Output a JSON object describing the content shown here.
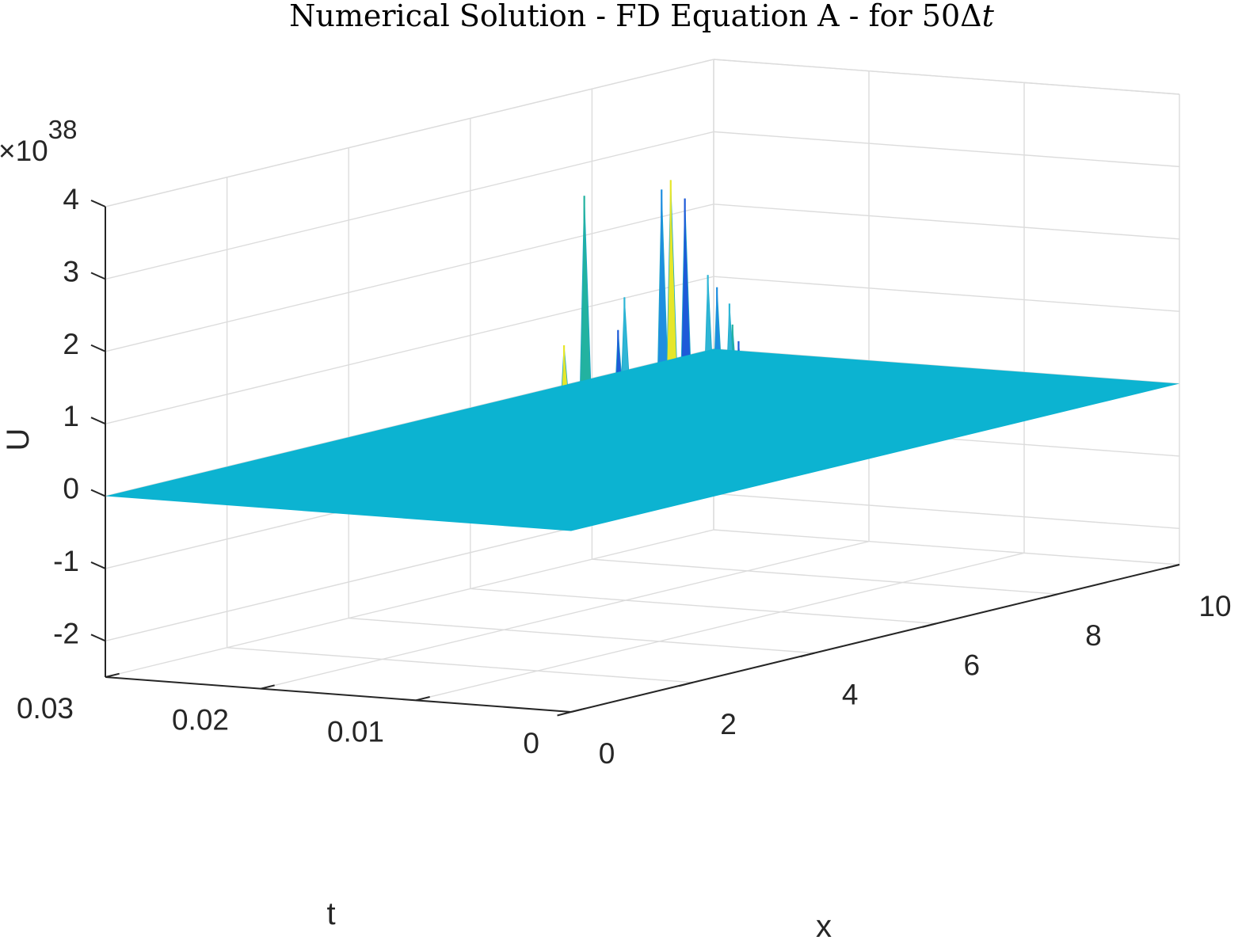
{
  "chart_data": {
    "type": "surface",
    "title": "Numerical Solution - FD Equation A - for 50",
    "title_symbol": "Δ",
    "title_italic": "t",
    "xlabel": "x",
    "ylabel": "t",
    "zlabel": "U",
    "x_ticks": [
      "0",
      "2",
      "4",
      "6",
      "8",
      "10"
    ],
    "t_ticks": [
      "0",
      "0.01",
      "0.02",
      "0.03"
    ],
    "z_ticks": [
      "-2",
      "-1",
      "0",
      "1",
      "2",
      "3",
      "4"
    ],
    "z_multiplier_base": "10",
    "z_multiplier_exp": "38",
    "xlim": [
      0,
      10
    ],
    "tlim": [
      0,
      0.03
    ],
    "zlim": [
      -2.5,
      4
    ],
    "grid": true,
    "surface_color": "#0cb3d1",
    "spike_colors": [
      "#2fb6d6",
      "#1f8ee0",
      "#e6e62a",
      "#23b2a0",
      "#1e5ad8"
    ],
    "baseline_value": 0,
    "spikes": [
      {
        "x": 4.55,
        "t": 0.012,
        "u": 3.6
      },
      {
        "x": 4.55,
        "t": 0.0105,
        "u": 3.5
      },
      {
        "x": 4.7,
        "t": 0.012,
        "u": 3.7
      },
      {
        "x": 4.45,
        "t": 0.014,
        "u": 2.1
      },
      {
        "x": 4.3,
        "t": 0.016,
        "u": 3.5
      },
      {
        "x": 4.35,
        "t": 0.0175,
        "u": 1.4
      },
      {
        "x": 4.6,
        "t": 0.015,
        "u": 1.6
      },
      {
        "x": 4.8,
        "t": 0.01,
        "u": 2.4
      },
      {
        "x": 4.95,
        "t": 0.01,
        "u": 2.2
      },
      {
        "x": 4.95,
        "t": 0.009,
        "u": 1.7
      },
      {
        "x": 5.05,
        "t": 0.009,
        "u": 1.45
      },
      {
        "x": 4.9,
        "t": 0.009,
        "u": 2.0
      },
      {
        "x": 4.65,
        "t": 0.012,
        "u": 1.0
      },
      {
        "x": 4.85,
        "t": 0.01,
        "u": 0.85
      },
      {
        "x": 4.15,
        "t": 0.019,
        "u": 0.6
      },
      {
        "x": 4.05,
        "t": 0.02,
        "u": 0.35
      }
    ]
  }
}
